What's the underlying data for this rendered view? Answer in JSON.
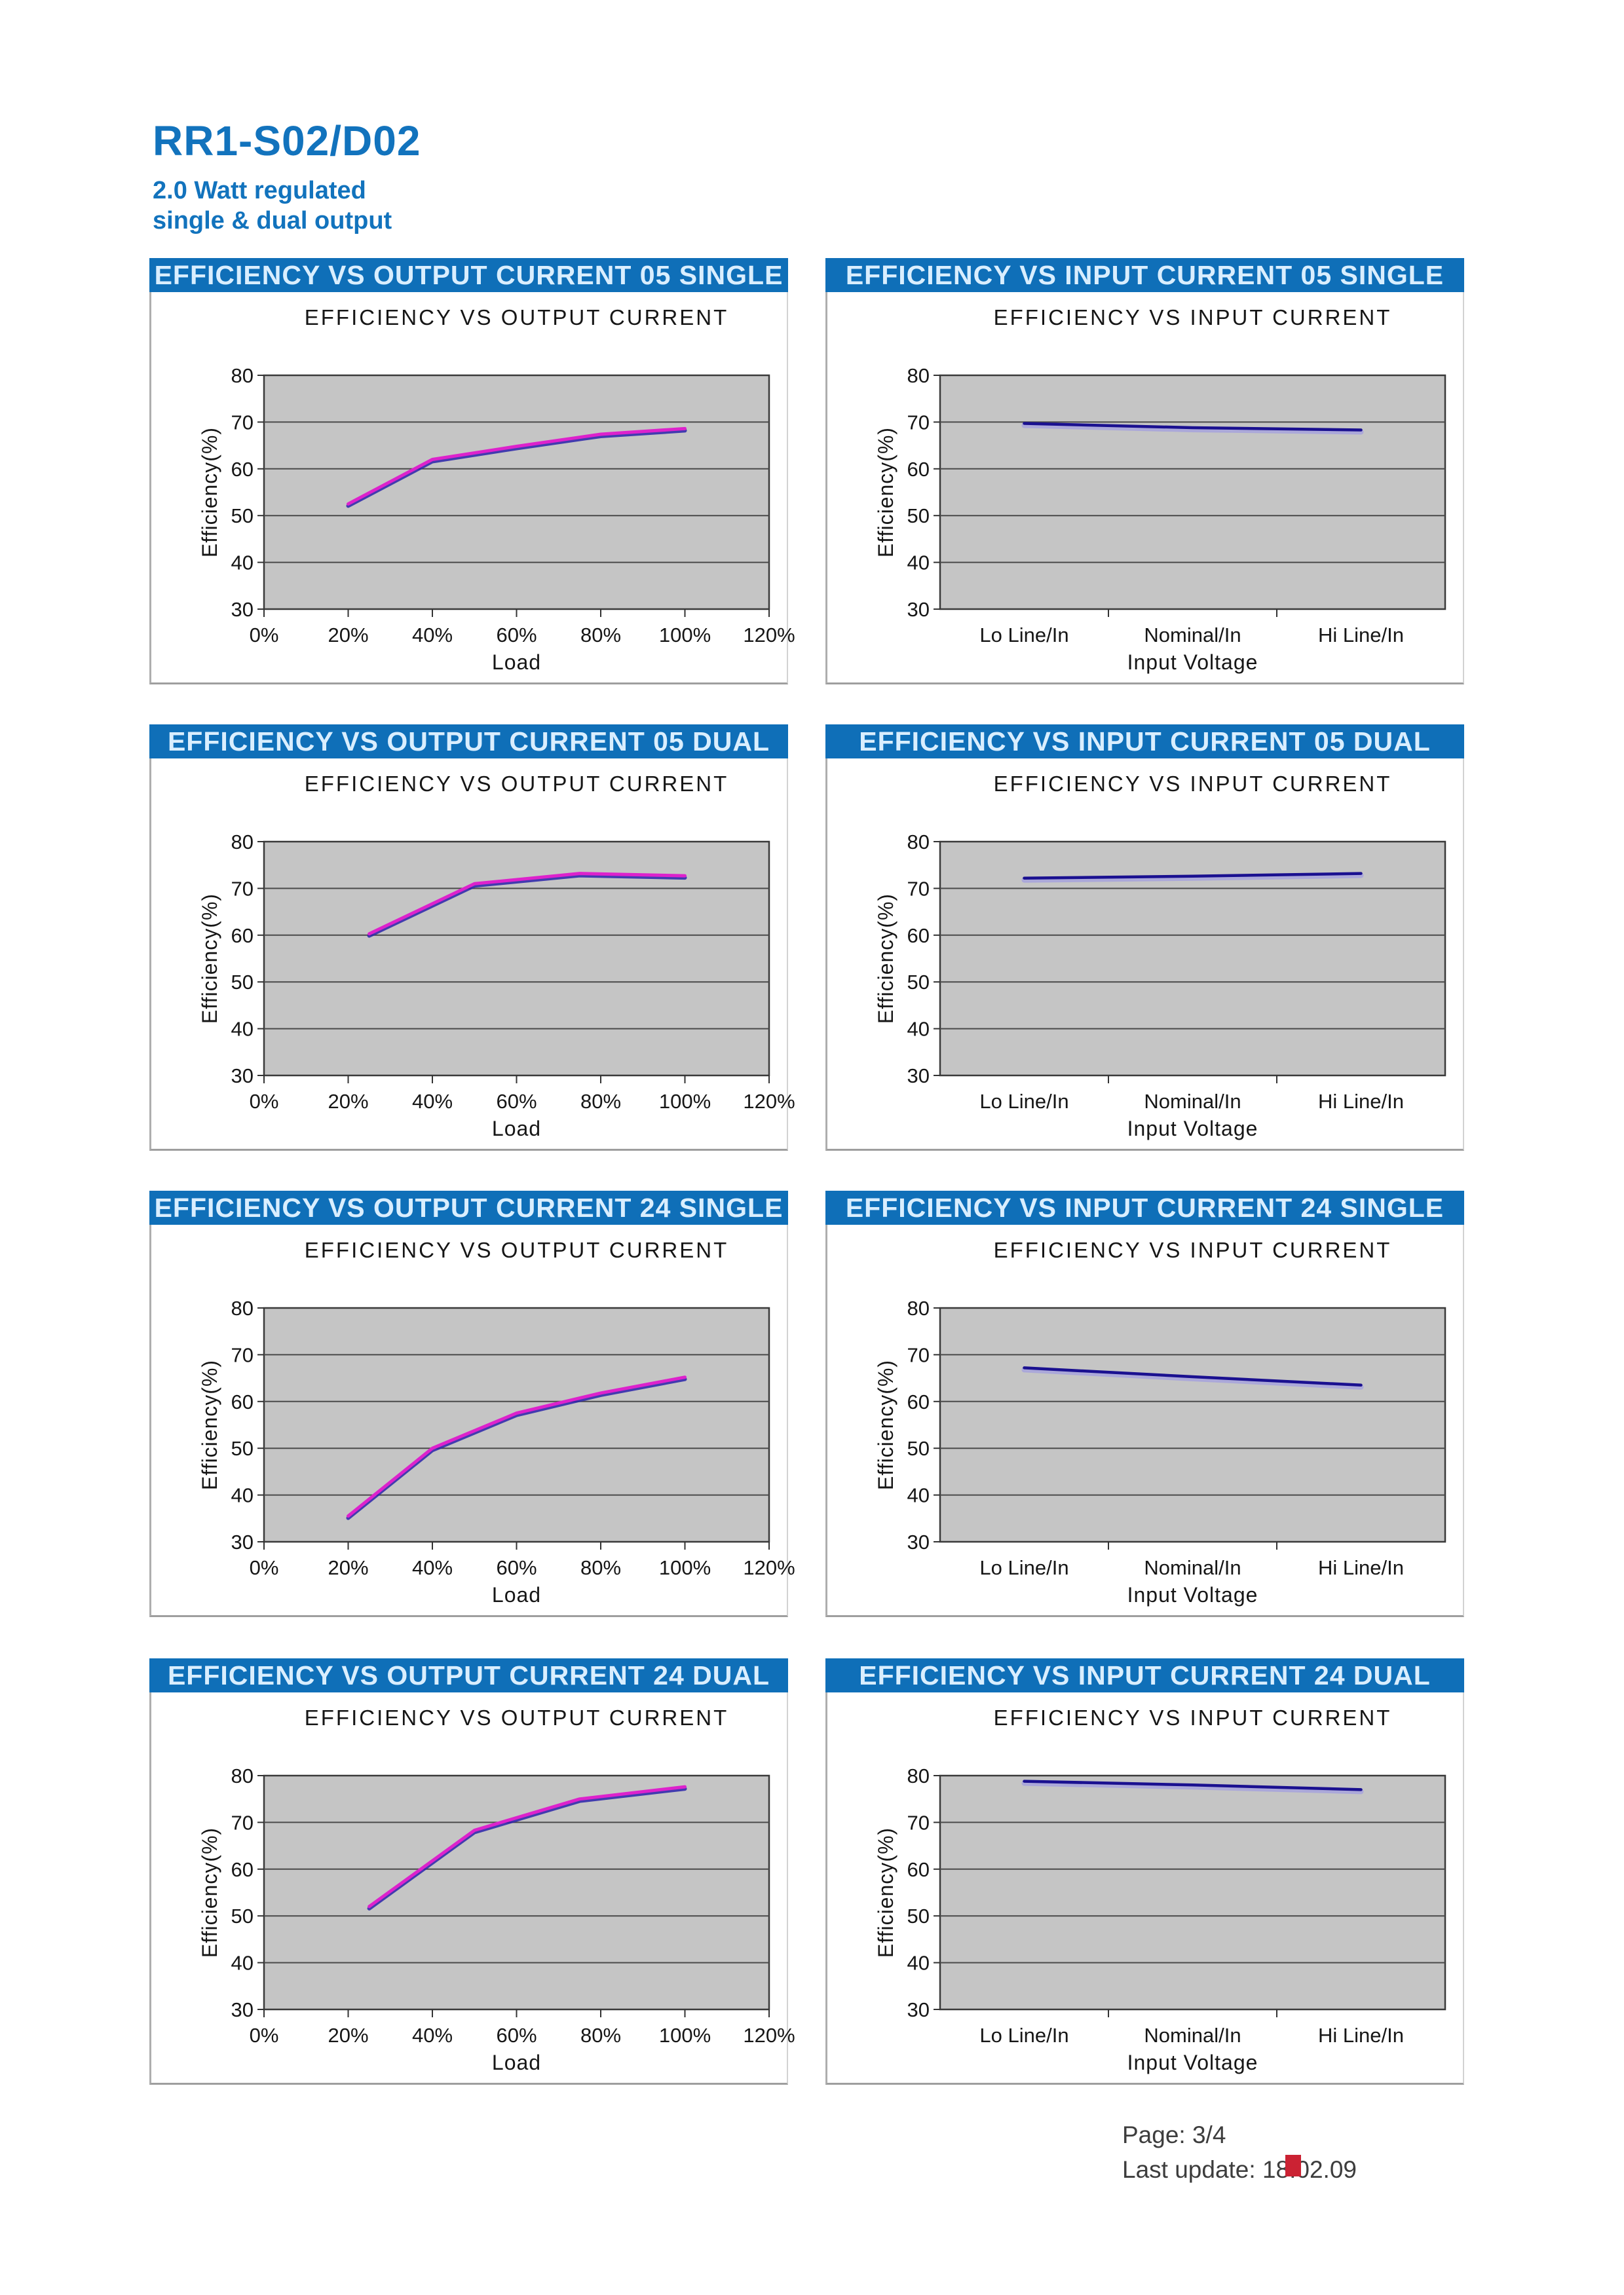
{
  "page": {
    "title": "RR1-S02/D02",
    "subtitle1": "2.0 Watt regulated",
    "subtitle2": "single & dual output"
  },
  "footer": {
    "page_label": "Page: 3/4",
    "last_update": "Last update: 18.02.09",
    "red_square_color": "#cb2233"
  },
  "colors": {
    "header_bar": "#0f6fb8",
    "header_text": "#d9eeff",
    "title_blue": "#1273bd",
    "plot_bg": "#c5c5c5",
    "grid_line": "#4a4a4a",
    "output_line": "#dd22cc",
    "output_line_shadow": "#2a22aa",
    "input_line": "#1a1090",
    "input_line_halo": "#9a94e6",
    "red_square": "#cb2233"
  },
  "chart_data": [
    {
      "panel_title": "EFFICIENCY VS OUTPUT CURRENT 05 SINGLE",
      "title": "EFFICIENCY VS OUTPUT CURRENT",
      "type": "line",
      "xlabel": "Load",
      "ylabel": "Efficiency(%)",
      "ylim": [
        30,
        80
      ],
      "yticks": [
        30,
        40,
        50,
        60,
        70,
        80
      ],
      "grid": "horizontal",
      "legend": "none",
      "x_axis": {
        "mode": "percent",
        "xlim": [
          0,
          120
        ],
        "ticks": [
          "0%",
          "20%",
          "40%",
          "60%",
          "80%",
          "100%",
          "120%"
        ]
      },
      "series": [
        {
          "name": "efficiency",
          "color_role": "output",
          "x": [
            20,
            40,
            60,
            80,
            100
          ],
          "y": [
            52.5,
            62,
            64.8,
            67.4,
            68.6
          ]
        }
      ]
    },
    {
      "panel_title": "EFFICIENCY VS INPUT CURRENT 05 SINGLE",
      "title": "EFFICIENCY VS INPUT CURRENT",
      "type": "line",
      "xlabel": "Input Voltage",
      "ylabel": "Efficiency(%)",
      "ylim": [
        30,
        80
      ],
      "yticks": [
        30,
        40,
        50,
        60,
        70,
        80
      ],
      "grid": "horizontal",
      "legend": "none",
      "x_axis": {
        "mode": "category",
        "categories": [
          "Lo Line/In",
          "Nominal/In",
          "Hi Line/In"
        ]
      },
      "series": [
        {
          "name": "efficiency",
          "color_role": "input",
          "y": [
            69.7,
            68.8,
            68.3
          ]
        }
      ]
    },
    {
      "panel_title": "EFFICIENCY VS OUTPUT CURRENT 05 DUAL",
      "title": "EFFICIENCY VS OUTPUT CURRENT",
      "type": "line",
      "xlabel": "Load",
      "ylabel": "Efficiency(%)",
      "ylim": [
        30,
        80
      ],
      "yticks": [
        30,
        40,
        50,
        60,
        70,
        80
      ],
      "grid": "horizontal",
      "legend": "none",
      "x_axis": {
        "mode": "percent",
        "xlim": [
          0,
          120
        ],
        "ticks": [
          "0%",
          "20%",
          "40%",
          "60%",
          "80%",
          "100%",
          "120%"
        ]
      },
      "series": [
        {
          "name": "efficiency",
          "color_role": "output",
          "x": [
            25,
            50,
            75,
            100
          ],
          "y": [
            60.3,
            71,
            73.2,
            72.7
          ]
        }
      ]
    },
    {
      "panel_title": "EFFICIENCY VS INPUT CURRENT 05 DUAL",
      "title": "EFFICIENCY VS INPUT CURRENT",
      "type": "line",
      "xlabel": "Input Voltage",
      "ylabel": "Efficiency(%)",
      "ylim": [
        30,
        80
      ],
      "yticks": [
        30,
        40,
        50,
        60,
        70,
        80
      ],
      "grid": "horizontal",
      "legend": "none",
      "x_axis": {
        "mode": "category",
        "categories": [
          "Lo Line/In",
          "Nominal/In",
          "Hi Line/In"
        ]
      },
      "series": [
        {
          "name": "efficiency",
          "color_role": "input",
          "y": [
            72.2,
            72.6,
            73.2
          ]
        }
      ]
    },
    {
      "panel_title": "EFFICIENCY VS OUTPUT CURRENT 24 SINGLE",
      "title": "EFFICIENCY VS OUTPUT CURRENT",
      "type": "line",
      "xlabel": "Load",
      "ylabel": "Efficiency(%)",
      "ylim": [
        30,
        80
      ],
      "yticks": [
        30,
        40,
        50,
        60,
        70,
        80
      ],
      "grid": "horizontal",
      "legend": "none",
      "x_axis": {
        "mode": "percent",
        "xlim": [
          0,
          120
        ],
        "ticks": [
          "0%",
          "20%",
          "40%",
          "60%",
          "80%",
          "100%",
          "120%"
        ]
      },
      "series": [
        {
          "name": "efficiency",
          "color_role": "output",
          "x": [
            20,
            40,
            60,
            80,
            100
          ],
          "y": [
            35.5,
            50,
            57.5,
            61.8,
            65.2
          ]
        }
      ]
    },
    {
      "panel_title": "EFFICIENCY VS INPUT CURRENT 24 SINGLE",
      "title": "EFFICIENCY VS INPUT CURRENT",
      "type": "line",
      "xlabel": "Input Voltage",
      "ylabel": "Efficiency(%)",
      "ylim": [
        30,
        80
      ],
      "yticks": [
        30,
        40,
        50,
        60,
        70,
        80
      ],
      "grid": "horizontal",
      "legend": "none",
      "x_axis": {
        "mode": "category",
        "categories": [
          "Lo Line/In",
          "Nominal/In",
          "Hi Line/In"
        ]
      },
      "series": [
        {
          "name": "efficiency",
          "color_role": "input",
          "y": [
            67.2,
            65.3,
            63.5
          ]
        }
      ]
    },
    {
      "panel_title": "EFFICIENCY VS OUTPUT CURRENT 24 DUAL",
      "title": "EFFICIENCY VS OUTPUT CURRENT",
      "type": "line",
      "xlabel": "Load",
      "ylabel": "Efficiency(%)",
      "ylim": [
        30,
        80
      ],
      "yticks": [
        30,
        40,
        50,
        60,
        70,
        80
      ],
      "grid": "horizontal",
      "legend": "none",
      "x_axis": {
        "mode": "percent",
        "xlim": [
          0,
          120
        ],
        "ticks": [
          "0%",
          "20%",
          "40%",
          "60%",
          "80%",
          "100%",
          "120%"
        ]
      },
      "series": [
        {
          "name": "efficiency",
          "color_role": "output",
          "x": [
            25,
            50,
            75,
            100
          ],
          "y": [
            52,
            68.3,
            75,
            77.6
          ]
        }
      ]
    },
    {
      "panel_title": "EFFICIENCY VS INPUT CURRENT 24 DUAL",
      "title": "EFFICIENCY VS INPUT CURRENT",
      "type": "line",
      "xlabel": "Input Voltage",
      "ylabel": "Efficiency(%)",
      "ylim": [
        30,
        80
      ],
      "yticks": [
        30,
        40,
        50,
        60,
        70,
        80
      ],
      "grid": "horizontal",
      "legend": "none",
      "x_axis": {
        "mode": "category",
        "categories": [
          "Lo Line/In",
          "Nominal/In",
          "Hi Line/In"
        ]
      },
      "series": [
        {
          "name": "efficiency",
          "color_role": "input",
          "y": [
            78.8,
            78,
            77
          ]
        }
      ]
    }
  ]
}
